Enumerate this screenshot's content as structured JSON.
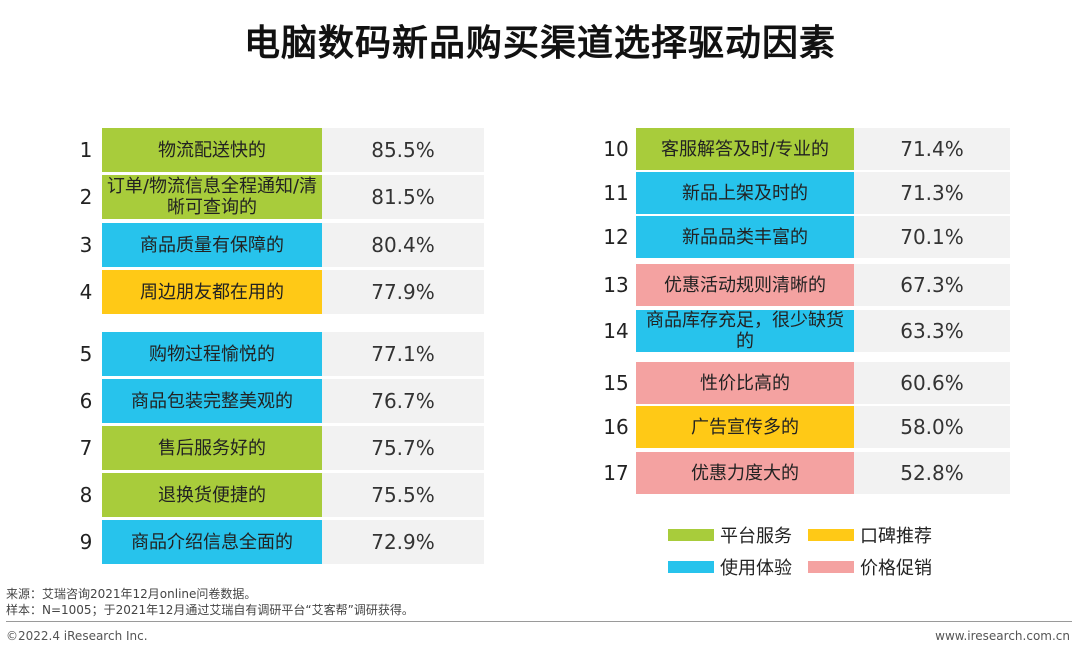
{
  "title": "电脑数码新品购买渠道选择驱动因素",
  "colors": {
    "平台服务": "#a8cc3b",
    "口碑推荐": "#ffc916",
    "使用体验": "#27c3ec",
    "价格促销": "#f4a2a1"
  },
  "chart_data": {
    "type": "table",
    "title": "电脑数码新品购买渠道选择驱动因素",
    "unit": "%",
    "rows": [
      {
        "rank": "1",
        "label": "物流配送快的",
        "value": "85.5%",
        "category": "平台服务"
      },
      {
        "rank": "2",
        "label": "订单/物流信息全程通知/清晰可查询的",
        "value": "81.5%",
        "category": "平台服务"
      },
      {
        "rank": "3",
        "label": "商品质量有保障的",
        "value": "80.4%",
        "category": "使用体验"
      },
      {
        "rank": "4",
        "label": "周边朋友都在用的",
        "value": "77.9%",
        "category": "口碑推荐"
      },
      {
        "rank": "5",
        "label": "购物过程愉悦的",
        "value": "77.1%",
        "category": "使用体验"
      },
      {
        "rank": "6",
        "label": "商品包装完整美观的",
        "value": "76.7%",
        "category": "使用体验"
      },
      {
        "rank": "7",
        "label": "售后服务好的",
        "value": "75.7%",
        "category": "平台服务"
      },
      {
        "rank": "8",
        "label": "退换货便捷的",
        "value": "75.5%",
        "category": "平台服务"
      },
      {
        "rank": "9",
        "label": "商品介绍信息全面的",
        "value": "72.9%",
        "category": "使用体验"
      },
      {
        "rank": "10",
        "label": "客服解答及时/专业的",
        "value": "71.4%",
        "category": "平台服务"
      },
      {
        "rank": "11",
        "label": "新品上架及时的",
        "value": "71.3%",
        "category": "使用体验"
      },
      {
        "rank": "12",
        "label": "新品品类丰富的",
        "value": "70.1%",
        "category": "使用体验"
      },
      {
        "rank": "13",
        "label": "优惠活动规则清晰的",
        "value": "67.3%",
        "category": "价格促销"
      },
      {
        "rank": "14",
        "label": "商品库存充足，很少缺货的",
        "value": "63.3%",
        "category": "使用体验"
      },
      {
        "rank": "15",
        "label": "性价比高的",
        "value": "60.6%",
        "category": "价格促销"
      },
      {
        "rank": "16",
        "label": "广告宣传多的",
        "value": "58.0%",
        "category": "口碑推荐"
      },
      {
        "rank": "17",
        "label": "优惠力度大的",
        "value": "52.8%",
        "category": "价格促销"
      }
    ],
    "legend": [
      "平台服务",
      "口碑推荐",
      "使用体验",
      "价格促销"
    ]
  },
  "notes": {
    "source": "来源：艾瑞咨询2021年12月online问卷数据。",
    "sample": "样本：N=1005；于2021年12月通过艾瑞自有调研平台“艾客帮”调研获得。"
  },
  "footer": {
    "copyright": "©2022.4 iResearch Inc.",
    "url": "www.iresearch.com.cn"
  }
}
